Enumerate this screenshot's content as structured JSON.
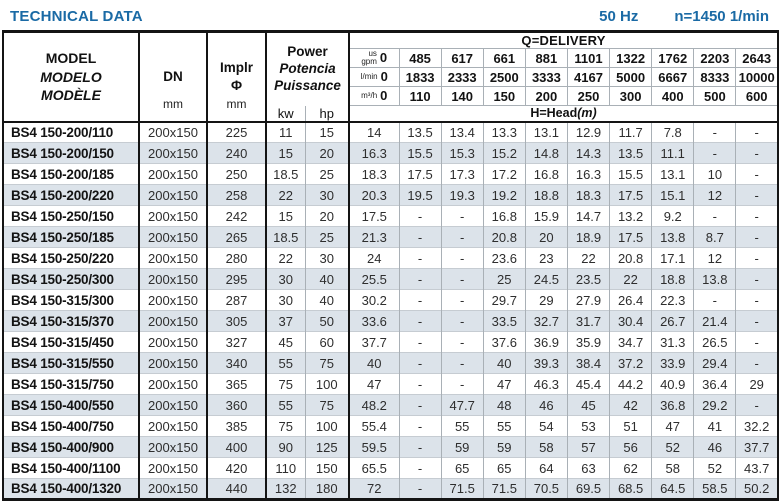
{
  "header": {
    "title": "TECHNICAL DATA",
    "frequency": "50 Hz",
    "speed": "n=1450 1/min"
  },
  "colors": {
    "accent_blue": "#1a6aa5",
    "row_stripe": "#dce3ea"
  },
  "table": {
    "model_col": {
      "line1": "MODEL",
      "line2": "MODELO",
      "line3": "MODÈLE"
    },
    "dn_col": {
      "label": "DN",
      "unit": "mm"
    },
    "implr_col": {
      "label": "Implr",
      "symbol": "Φ",
      "unit": "mm"
    },
    "power_col": {
      "line1": "Power",
      "line2": "Potencia",
      "line3": "Puissance",
      "kw": "kw",
      "hp": "hp"
    },
    "delivery": {
      "title": "Q=DELIVERY",
      "head_label": "H=Head",
      "head_unit": "(m)",
      "rows": [
        {
          "unit": "us\ngpm",
          "zero": "0",
          "values": [
            "485",
            "617",
            "661",
            "881",
            "1101",
            "1322",
            "1762",
            "2203",
            "2643"
          ]
        },
        {
          "unit": "l/min",
          "zero": "0",
          "values": [
            "1833",
            "2333",
            "2500",
            "3333",
            "4167",
            "5000",
            "6667",
            "8333",
            "10000"
          ]
        },
        {
          "unit": "m³/h",
          "zero": "0",
          "values": [
            "110",
            "140",
            "150",
            "200",
            "250",
            "300",
            "400",
            "500",
            "600"
          ]
        }
      ]
    },
    "rows": [
      {
        "model": "BS4 150-200/110",
        "dn": "200x150",
        "implr": "225",
        "kw": "11",
        "hp": "15",
        "head": [
          "14",
          "13.5",
          "13.4",
          "13.3",
          "13.1",
          "12.9",
          "11.7",
          "7.8",
          "-",
          "-"
        ]
      },
      {
        "model": "BS4 150-200/150",
        "dn": "200x150",
        "implr": "240",
        "kw": "15",
        "hp": "20",
        "head": [
          "16.3",
          "15.5",
          "15.3",
          "15.2",
          "14.8",
          "14.3",
          "13.5",
          "11.1",
          "-",
          "-"
        ]
      },
      {
        "model": "BS4 150-200/185",
        "dn": "200x150",
        "implr": "250",
        "kw": "18.5",
        "hp": "25",
        "head": [
          "18.3",
          "17.5",
          "17.3",
          "17.2",
          "16.8",
          "16.3",
          "15.5",
          "13.1",
          "10",
          "-"
        ]
      },
      {
        "model": "BS4 150-200/220",
        "dn": "200x150",
        "implr": "258",
        "kw": "22",
        "hp": "30",
        "head": [
          "20.3",
          "19.5",
          "19.3",
          "19.2",
          "18.8",
          "18.3",
          "17.5",
          "15.1",
          "12",
          "-"
        ]
      },
      {
        "model": "BS4 150-250/150",
        "dn": "200x150",
        "implr": "242",
        "kw": "15",
        "hp": "20",
        "head": [
          "17.5",
          "-",
          "-",
          "16.8",
          "15.9",
          "14.7",
          "13.2",
          "9.2",
          "-",
          "-"
        ]
      },
      {
        "model": "BS4 150-250/185",
        "dn": "200x150",
        "implr": "265",
        "kw": "18.5",
        "hp": "25",
        "head": [
          "21.3",
          "-",
          "-",
          "20.8",
          "20",
          "18.9",
          "17.5",
          "13.8",
          "8.7",
          "-"
        ]
      },
      {
        "model": "BS4 150-250/220",
        "dn": "200x150",
        "implr": "280",
        "kw": "22",
        "hp": "30",
        "head": [
          "24",
          "-",
          "-",
          "23.6",
          "23",
          "22",
          "20.8",
          "17.1",
          "12",
          "-"
        ]
      },
      {
        "model": "BS4 150-250/300",
        "dn": "200x150",
        "implr": "295",
        "kw": "30",
        "hp": "40",
        "head": [
          "25.5",
          "-",
          "-",
          "25",
          "24.5",
          "23.5",
          "22",
          "18.8",
          "13.8",
          "-"
        ]
      },
      {
        "model": "BS4 150-315/300",
        "dn": "200x150",
        "implr": "287",
        "kw": "30",
        "hp": "40",
        "head": [
          "30.2",
          "-",
          "-",
          "29.7",
          "29",
          "27.9",
          "26.4",
          "22.3",
          "-",
          "-"
        ]
      },
      {
        "model": "BS4 150-315/370",
        "dn": "200x150",
        "implr": "305",
        "kw": "37",
        "hp": "50",
        "head": [
          "33.6",
          "-",
          "-",
          "33.5",
          "32.7",
          "31.7",
          "30.4",
          "26.7",
          "21.4",
          "-"
        ]
      },
      {
        "model": "BS4 150-315/450",
        "dn": "200x150",
        "implr": "327",
        "kw": "45",
        "hp": "60",
        "head": [
          "37.7",
          "-",
          "-",
          "37.6",
          "36.9",
          "35.9",
          "34.7",
          "31.3",
          "26.5",
          "-"
        ]
      },
      {
        "model": "BS4 150-315/550",
        "dn": "200x150",
        "implr": "340",
        "kw": "55",
        "hp": "75",
        "head": [
          "40",
          "-",
          "-",
          "40",
          "39.3",
          "38.4",
          "37.2",
          "33.9",
          "29.4",
          "-"
        ]
      },
      {
        "model": "BS4 150-315/750",
        "dn": "200x150",
        "implr": "365",
        "kw": "75",
        "hp": "100",
        "head": [
          "47",
          "-",
          "-",
          "47",
          "46.3",
          "45.4",
          "44.2",
          "40.9",
          "36.4",
          "29"
        ]
      },
      {
        "model": "BS4 150-400/550",
        "dn": "200x150",
        "implr": "360",
        "kw": "55",
        "hp": "75",
        "head": [
          "48.2",
          "-",
          "47.7",
          "48",
          "46",
          "45",
          "42",
          "36.8",
          "29.2",
          "-"
        ]
      },
      {
        "model": "BS4 150-400/750",
        "dn": "200x150",
        "implr": "385",
        "kw": "75",
        "hp": "100",
        "head": [
          "55.4",
          "-",
          "55",
          "55",
          "54",
          "53",
          "51",
          "47",
          "41",
          "32.2"
        ]
      },
      {
        "model": "BS4 150-400/900",
        "dn": "200x150",
        "implr": "400",
        "kw": "90",
        "hp": "125",
        "head": [
          "59.5",
          "-",
          "59",
          "59",
          "58",
          "57",
          "56",
          "52",
          "46",
          "37.7"
        ]
      },
      {
        "model": "BS4 150-400/1100",
        "dn": "200x150",
        "implr": "420",
        "kw": "110",
        "hp": "150",
        "head": [
          "65.5",
          "-",
          "65",
          "65",
          "64",
          "63",
          "62",
          "58",
          "52",
          "43.7"
        ]
      },
      {
        "model": "BS4 150-400/1320",
        "dn": "200x150",
        "implr": "440",
        "kw": "132",
        "hp": "180",
        "head": [
          "72",
          "-",
          "71.5",
          "71.5",
          "70.5",
          "69.5",
          "68.5",
          "64.5",
          "58.5",
          "50.2"
        ]
      }
    ]
  }
}
